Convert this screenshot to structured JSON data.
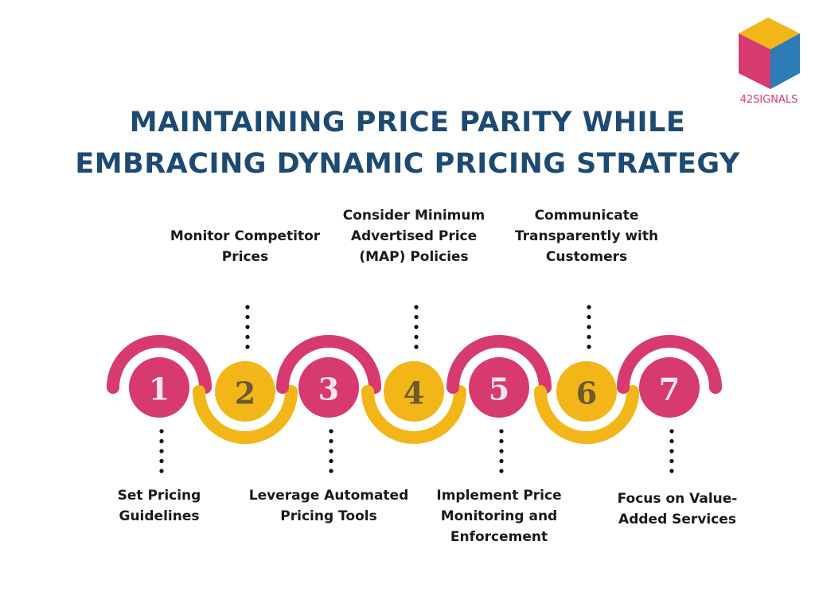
{
  "logo": {
    "text": "42SIGNALS"
  },
  "header": {
    "title_lines": [
      "MAINTAINING PRICE PARITY WHILE",
      "EMBRACING DYNAMIC PRICING STRATEGY"
    ]
  },
  "steps": [
    {
      "number": "1",
      "label_lines": [
        "Set Pricing",
        "Guidelines"
      ]
    },
    {
      "number": "2",
      "label_lines": [
        "Monitor Competitor",
        "Prices"
      ]
    },
    {
      "number": "3",
      "label_lines": [
        "Leverage Automated",
        "Pricing Tools"
      ]
    },
    {
      "number": "4",
      "label_lines": [
        "Consider Minimum",
        "Advertised Price",
        "(MAP) Policies"
      ]
    },
    {
      "number": "5",
      "label_lines": [
        "Implement Price",
        "Monitoring and",
        "Enforcement"
      ]
    },
    {
      "number": "6",
      "label_lines": [
        "Communicate",
        "Transparently with",
        "Customers"
      ]
    },
    {
      "number": "7",
      "label_lines": [
        "Focus on Value-",
        "Added Services"
      ]
    }
  ]
}
